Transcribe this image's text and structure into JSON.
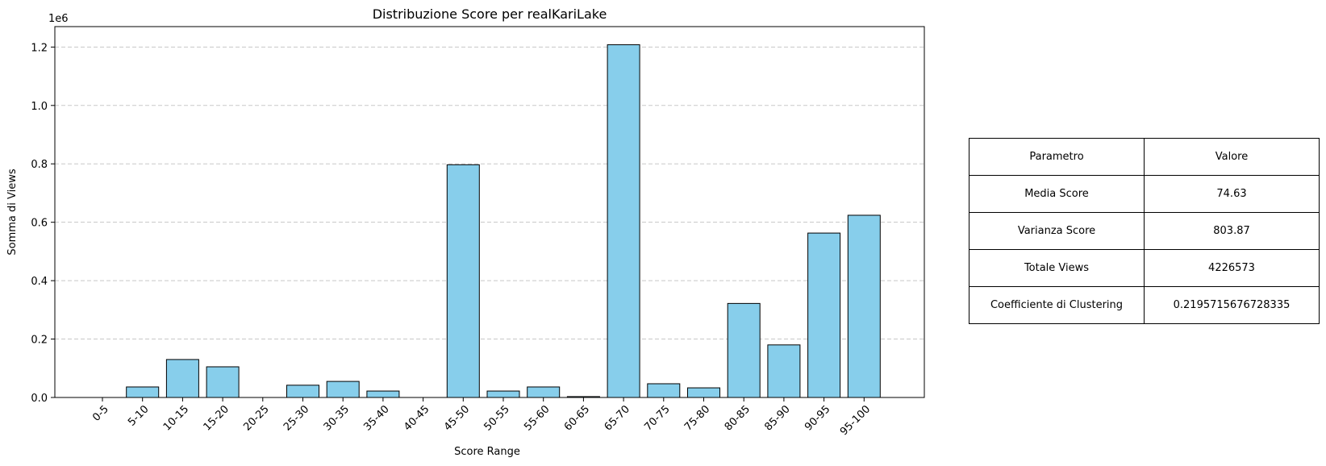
{
  "chart_data": {
    "type": "bar",
    "title": "Distribuzione Score per realKariLake",
    "xlabel": "Score Range",
    "ylabel": "Somma di Views",
    "y_offset_text": "1e6",
    "y_ticks": [
      "0.0",
      "0.2",
      "0.4",
      "0.6",
      "0.8",
      "1.0",
      "1.2"
    ],
    "ylim": [
      0,
      1270000
    ],
    "grid": "y-dashed",
    "categories": [
      "0-5",
      "5-10",
      "10-15",
      "15-20",
      "20-25",
      "25-30",
      "30-35",
      "35-40",
      "40-45",
      "45-50",
      "50-55",
      "55-60",
      "60-65",
      "65-70",
      "70-75",
      "75-80",
      "80-85",
      "85-90",
      "90-95",
      "95-100"
    ],
    "values": [
      0,
      36000,
      130000,
      105000,
      0,
      42000,
      55000,
      22000,
      0,
      797000,
      22000,
      36000,
      3000,
      1208000,
      47000,
      33000,
      322000,
      180000,
      563000,
      624000
    ],
    "bar_color": "#87CEEB",
    "edge_color": "#000000"
  },
  "table": {
    "headers": [
      "Parametro",
      "Valore"
    ],
    "rows": [
      [
        "Media Score",
        "74.63"
      ],
      [
        "Varianza Score",
        "803.87"
      ],
      [
        "Totale Views",
        "4226573"
      ],
      [
        "Coefficiente di Clustering",
        "0.2195715676728335"
      ]
    ]
  }
}
